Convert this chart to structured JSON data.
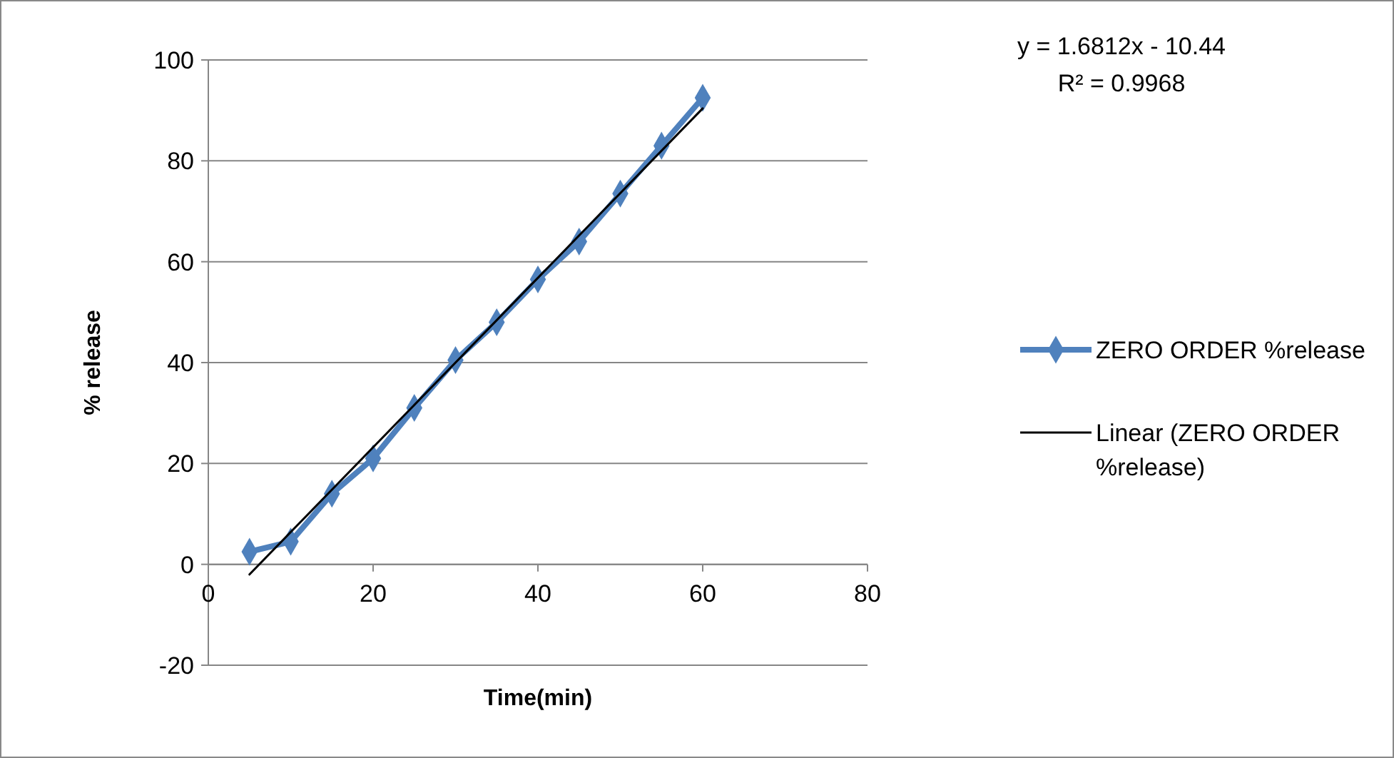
{
  "chart_data": {
    "type": "line",
    "xlabel": "Time(min)",
    "ylabel": "% release",
    "xlim": [
      0,
      80
    ],
    "xticks": [
      0,
      20,
      40,
      60,
      80
    ],
    "ylim": [
      -20,
      100
    ],
    "yticks": [
      -20,
      0,
      20,
      40,
      60,
      80,
      100
    ],
    "grid": "y",
    "legend": "right",
    "line_style": "solid",
    "series": [
      {
        "name": "ZERO ORDER %release",
        "color": "#4f81bd",
        "marker": "diamond",
        "x": [
          5,
          10,
          15,
          20,
          25,
          30,
          35,
          40,
          45,
          50,
          55,
          60
        ],
        "values": [
          2.5,
          4.5,
          14,
          21,
          31,
          40.5,
          48,
          56.5,
          64,
          73.5,
          83,
          92.5
        ]
      },
      {
        "name": "Linear (ZERO ORDER %release)",
        "color": "#000000",
        "marker": "none",
        "x": [
          5,
          60
        ],
        "values": [
          -2,
          90.4
        ]
      }
    ],
    "annotations": [
      "y = 1.6812x - 10.44",
      "R² = 0.9968"
    ]
  }
}
